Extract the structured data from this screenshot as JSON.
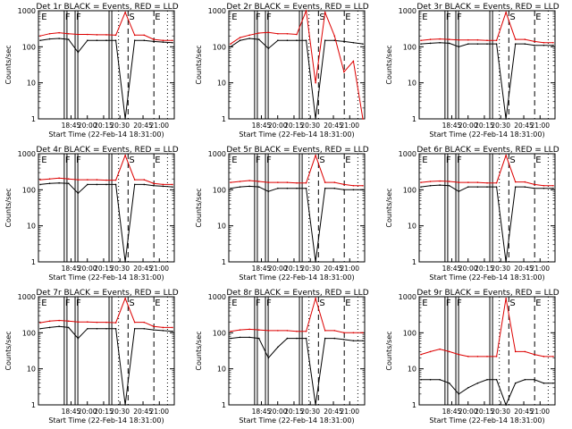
{
  "chart_data": [
    {
      "type": "line",
      "title": "Det 1r BLACK = Events, RED = LLD",
      "xlabel": "Start Time (22-Feb-14 18:31:00)",
      "ylabel": "Counts/sec",
      "x_ticks": [
        "18:45",
        "20:00",
        "20:15",
        "20:30",
        "20:45",
        "21:00"
      ],
      "y_ticks": [
        "1",
        "10",
        "100",
        "1000"
      ],
      "ylim": [
        1,
        1000
      ],
      "yscale": "log",
      "markers": [
        "E",
        "F",
        "F",
        "S",
        "E"
      ],
      "series": [
        {
          "color": "#000000",
          "level": "black",
          "values": [
            150,
            165,
            170,
            160,
            70,
            150,
            150,
            150,
            150,
            1,
            150,
            150,
            140,
            135,
            130
          ]
        },
        {
          "color": "#dd0000",
          "level": "red",
          "values": [
            200,
            230,
            245,
            230,
            220,
            220,
            215,
            215,
            210,
            900,
            210,
            210,
            160,
            150,
            150
          ]
        }
      ]
    },
    {
      "type": "line",
      "title": "Det 2r BLACK = Events, RED = LLD",
      "xlabel": "Start Time (22-Feb-14 18:31:00)",
      "ylabel": "Counts/sec",
      "x_ticks": [
        "18:45",
        "20:00",
        "20:15",
        "20:30",
        "20:45",
        "21:00"
      ],
      "y_ticks": [
        "1",
        "10",
        "100",
        "1000"
      ],
      "ylim": [
        1,
        1000
      ],
      "yscale": "log",
      "markers": [
        "E",
        "F",
        "F",
        "S",
        "E"
      ],
      "series": [
        {
          "color": "#000000",
          "level": "black",
          "values": [
            100,
            150,
            170,
            160,
            90,
            150,
            150,
            150,
            150,
            1,
            150,
            150,
            140,
            130,
            120
          ]
        },
        {
          "color": "#dd0000",
          "level": "red",
          "values": [
            120,
            180,
            210,
            240,
            250,
            230,
            230,
            220,
            1000,
            10,
            900,
            200,
            20,
            40,
            1
          ]
        }
      ]
    },
    {
      "type": "line",
      "title": "Det 3r BLACK = Events, RED = LLD",
      "xlabel": "Start Time (22-Feb-14 18:31:00)",
      "ylabel": "Counts/sec",
      "x_ticks": [
        "18:45",
        "20:00",
        "20:15",
        "20:30",
        "20:45",
        "21:00"
      ],
      "y_ticks": [
        "1",
        "10",
        "100",
        "1000"
      ],
      "ylim": [
        1,
        1000
      ],
      "yscale": "log",
      "markers": [
        "E",
        "F",
        "F",
        "S",
        "E"
      ],
      "series": [
        {
          "color": "#000000",
          "level": "black",
          "values": [
            120,
            125,
            130,
            125,
            100,
            120,
            120,
            120,
            120,
            1,
            120,
            120,
            110,
            110,
            110
          ]
        },
        {
          "color": "#dd0000",
          "level": "red",
          "values": [
            150,
            160,
            165,
            160,
            155,
            155,
            155,
            150,
            150,
            900,
            160,
            160,
            140,
            130,
            130
          ]
        }
      ]
    },
    {
      "type": "line",
      "title": "Det 4r BLACK = Events, RED = LLD",
      "xlabel": "Start Time (22-Feb-14 18:31:00)",
      "ylabel": "Counts/sec",
      "x_ticks": [
        "18:45",
        "20:00",
        "20:15",
        "20:30",
        "20:45",
        "21:00"
      ],
      "y_ticks": [
        "1",
        "10",
        "100",
        "1000"
      ],
      "ylim": [
        1,
        1000
      ],
      "yscale": "log",
      "markers": [
        "E",
        "F",
        "F",
        "S",
        "E"
      ],
      "series": [
        {
          "color": "#000000",
          "level": "black",
          "values": [
            140,
            150,
            155,
            150,
            80,
            140,
            140,
            140,
            140,
            1,
            140,
            140,
            130,
            125,
            120
          ]
        },
        {
          "color": "#dd0000",
          "level": "red",
          "values": [
            190,
            200,
            210,
            200,
            190,
            190,
            190,
            185,
            185,
            900,
            190,
            190,
            150,
            140,
            140
          ]
        }
      ]
    },
    {
      "type": "line",
      "title": "Det 5r BLACK = Events, RED = LLD",
      "xlabel": "Start Time (22-Feb-14 18:31:00)",
      "ylabel": "Counts/sec",
      "x_ticks": [
        "18:45",
        "20:00",
        "20:15",
        "20:30",
        "20:45",
        "21:00"
      ],
      "y_ticks": [
        "1",
        "10",
        "100",
        "1000"
      ],
      "ylim": [
        1,
        1000
      ],
      "yscale": "log",
      "markers": [
        "E",
        "F",
        "F",
        "S",
        "E"
      ],
      "series": [
        {
          "color": "#000000",
          "level": "black",
          "values": [
            110,
            120,
            125,
            120,
            90,
            110,
            110,
            110,
            110,
            1,
            110,
            110,
            100,
            100,
            100
          ]
        },
        {
          "color": "#dd0000",
          "level": "red",
          "values": [
            160,
            170,
            180,
            170,
            160,
            160,
            160,
            155,
            155,
            900,
            160,
            160,
            140,
            130,
            130
          ]
        }
      ]
    },
    {
      "type": "line",
      "title": "Det 6r BLACK = Events, RED = LLD",
      "xlabel": "Start Time (22-Feb-14 18:31:00)",
      "ylabel": "Counts/sec",
      "x_ticks": [
        "18:45",
        "20:00",
        "20:15",
        "20:30",
        "20:45",
        "21:00"
      ],
      "y_ticks": [
        "1",
        "10",
        "100",
        "1000"
      ],
      "ylim": [
        1,
        1000
      ],
      "yscale": "log",
      "markers": [
        "E",
        "F",
        "F",
        "S",
        "E"
      ],
      "series": [
        {
          "color": "#000000",
          "level": "black",
          "values": [
            120,
            130,
            135,
            130,
            90,
            120,
            120,
            120,
            120,
            1,
            120,
            120,
            110,
            110,
            110
          ]
        },
        {
          "color": "#dd0000",
          "level": "red",
          "values": [
            160,
            170,
            175,
            170,
            160,
            160,
            160,
            155,
            155,
            900,
            165,
            165,
            140,
            130,
            130
          ]
        }
      ]
    },
    {
      "type": "line",
      "title": "Det 7r BLACK = Events, RED = LLD",
      "xlabel": "Start Time (22-Feb-14 18:31:00)",
      "ylabel": "Counts/sec",
      "x_ticks": [
        "18:45",
        "20:00",
        "20:15",
        "20:30",
        "20:45",
        "21:00"
      ],
      "y_ticks": [
        "1",
        "10",
        "100",
        "1000"
      ],
      "ylim": [
        1,
        1000
      ],
      "yscale": "log",
      "markers": [
        "E",
        "F",
        "F",
        "S",
        "E"
      ],
      "series": [
        {
          "color": "#000000",
          "level": "black",
          "values": [
            130,
            140,
            150,
            140,
            70,
            130,
            130,
            130,
            130,
            1,
            130,
            130,
            120,
            115,
            110
          ]
        },
        {
          "color": "#dd0000",
          "level": "red",
          "values": [
            190,
            210,
            220,
            210,
            200,
            200,
            195,
            195,
            190,
            900,
            195,
            195,
            150,
            140,
            140
          ]
        }
      ]
    },
    {
      "type": "line",
      "title": "Det 8r BLACK = Events, RED = LLD",
      "xlabel": "Start Time (22-Feb-14 18:31:00)",
      "ylabel": "Counts/sec",
      "x_ticks": [
        "18:45",
        "20:00",
        "20:15",
        "20:30",
        "20:45",
        "21:00"
      ],
      "y_ticks": [
        "1",
        "10",
        "100",
        "1000"
      ],
      "ylim": [
        1,
        1000
      ],
      "yscale": "log",
      "markers": [
        "E",
        "F",
        "F",
        "S",
        "E"
      ],
      "series": [
        {
          "color": "#000000",
          "level": "black",
          "values": [
            70,
            75,
            75,
            70,
            20,
            40,
            70,
            70,
            70,
            1,
            70,
            70,
            65,
            60,
            60
          ]
        },
        {
          "color": "#dd0000",
          "level": "red",
          "values": [
            110,
            120,
            125,
            120,
            115,
            115,
            115,
            110,
            110,
            900,
            115,
            115,
            100,
            100,
            100
          ]
        }
      ]
    },
    {
      "type": "line",
      "title": "Det 9r BLACK = Events, RED = LLD",
      "xlabel": "Start Time (22-Feb-14 18:31:00)",
      "ylabel": "Counts/sec",
      "x_ticks": [
        "18:45",
        "20:00",
        "20:15",
        "20:30",
        "20:45",
        "21:00"
      ],
      "y_ticks": [
        "1",
        "10",
        "100",
        "1000"
      ],
      "ylim": [
        1,
        1000
      ],
      "yscale": "log",
      "markers": [
        "E",
        "F",
        "F",
        "S",
        "E"
      ],
      "series": [
        {
          "color": "#000000",
          "level": "black",
          "values": [
            5,
            5,
            5,
            4,
            2,
            3,
            4,
            5,
            5,
            1,
            4,
            5,
            5,
            4,
            4
          ]
        },
        {
          "color": "#dd0000",
          "level": "red",
          "values": [
            25,
            30,
            35,
            30,
            25,
            22,
            22,
            22,
            22,
            900,
            30,
            30,
            25,
            22,
            22
          ]
        }
      ]
    }
  ]
}
